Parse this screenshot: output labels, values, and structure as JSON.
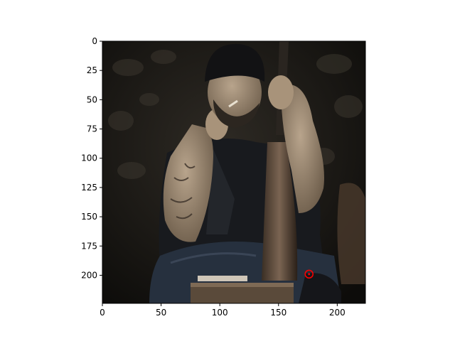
{
  "chart_data": {
    "type": "image",
    "title": "",
    "xlabel": "",
    "ylabel": "",
    "xlim": [
      0,
      224
    ],
    "ylim": [
      224,
      0
    ],
    "y_inverted": true,
    "x_ticks": [
      0,
      50,
      100,
      150,
      200
    ],
    "y_ticks": [
      0,
      25,
      50,
      75,
      100,
      125,
      150,
      175,
      200
    ],
    "grid": false,
    "image_description": "photo of a bearded man in a dark beanie smoking a cigarette, holding a rifle upright, seated against a dark stone wall",
    "markers": [
      {
        "shape": "circle",
        "x": 176,
        "y": 199,
        "color": "#ff0000",
        "filled": false
      }
    ]
  },
  "colors": {
    "axes": "#000000",
    "marker": "#ff0000",
    "background": "#ffffff"
  }
}
